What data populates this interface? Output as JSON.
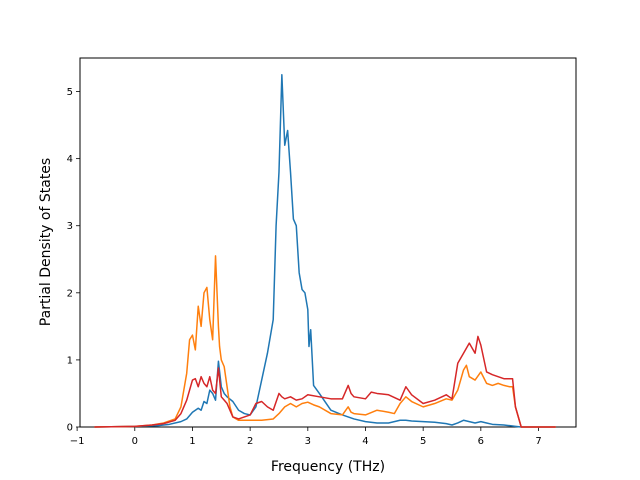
{
  "chart_data": {
    "type": "line",
    "title": "",
    "xlabel": "Frequency (THz)",
    "ylabel": "Partial Density of States",
    "xlim": [
      -0.95,
      7.65
    ],
    "ylim": [
      0,
      5.5
    ],
    "xticks": [
      -1,
      0,
      1,
      2,
      3,
      4,
      5,
      6,
      7
    ],
    "yticks": [
      0,
      1,
      2,
      3,
      4,
      5
    ],
    "grid": false,
    "legend": "none",
    "series": [
      {
        "color": "#1f77b4",
        "x": [
          -0.7,
          0.0,
          0.4,
          0.6,
          0.8,
          0.9,
          1.0,
          1.1,
          1.15,
          1.2,
          1.25,
          1.3,
          1.35,
          1.4,
          1.45,
          1.5,
          1.55,
          1.6,
          1.7,
          1.8,
          1.9,
          2.0,
          2.1,
          2.2,
          2.3,
          2.4,
          2.45,
          2.5,
          2.55,
          2.6,
          2.65,
          2.7,
          2.75,
          2.8,
          2.85,
          2.9,
          2.95,
          3.0,
          3.02,
          3.05,
          3.1,
          3.2,
          3.4,
          3.6,
          3.8,
          4.0,
          4.2,
          4.4,
          4.6,
          4.7,
          4.8,
          5.0,
          5.2,
          5.4,
          5.5,
          5.6,
          5.7,
          5.8,
          5.9,
          6.0,
          6.1,
          6.2,
          6.4,
          6.5,
          6.6,
          6.7,
          7.3
        ],
        "y": [
          0,
          0.01,
          0.02,
          0.04,
          0.08,
          0.12,
          0.22,
          0.28,
          0.25,
          0.38,
          0.35,
          0.55,
          0.5,
          0.4,
          0.98,
          0.6,
          0.5,
          0.45,
          0.38,
          0.25,
          0.2,
          0.18,
          0.3,
          0.7,
          1.1,
          1.6,
          3.0,
          3.8,
          5.25,
          4.2,
          4.42,
          3.8,
          3.1,
          3.0,
          2.3,
          2.05,
          2.0,
          1.75,
          1.2,
          1.45,
          0.62,
          0.5,
          0.25,
          0.18,
          0.12,
          0.08,
          0.06,
          0.06,
          0.1,
          0.1,
          0.09,
          0.08,
          0.07,
          0.05,
          0.03,
          0.06,
          0.1,
          0.08,
          0.06,
          0.08,
          0.06,
          0.04,
          0.03,
          0.02,
          0.01,
          0,
          0
        ]
      },
      {
        "color": "#ff7f0e",
        "x": [
          -0.7,
          0.0,
          0.3,
          0.5,
          0.7,
          0.8,
          0.9,
          0.95,
          1.0,
          1.05,
          1.1,
          1.15,
          1.2,
          1.25,
          1.3,
          1.35,
          1.4,
          1.45,
          1.47,
          1.5,
          1.55,
          1.6,
          1.65,
          1.7,
          1.8,
          2.0,
          2.2,
          2.4,
          2.5,
          2.6,
          2.7,
          2.8,
          2.9,
          3.0,
          3.1,
          3.2,
          3.4,
          3.6,
          3.7,
          3.75,
          3.8,
          4.0,
          4.2,
          4.4,
          4.5,
          4.6,
          4.7,
          4.8,
          5.0,
          5.2,
          5.4,
          5.5,
          5.6,
          5.7,
          5.75,
          5.8,
          5.9,
          6.0,
          6.1,
          6.2,
          6.3,
          6.4,
          6.5,
          6.55,
          6.6,
          6.7,
          7.3
        ],
        "y": [
          0,
          0.01,
          0.03,
          0.06,
          0.12,
          0.3,
          0.8,
          1.3,
          1.37,
          1.15,
          1.8,
          1.5,
          2.0,
          2.08,
          1.6,
          1.3,
          2.55,
          1.5,
          1.2,
          1.0,
          0.9,
          0.6,
          0.3,
          0.15,
          0.1,
          0.1,
          0.1,
          0.12,
          0.2,
          0.3,
          0.35,
          0.3,
          0.35,
          0.37,
          0.33,
          0.3,
          0.2,
          0.18,
          0.3,
          0.22,
          0.2,
          0.18,
          0.25,
          0.22,
          0.2,
          0.35,
          0.45,
          0.38,
          0.3,
          0.35,
          0.42,
          0.4,
          0.55,
          0.85,
          0.92,
          0.75,
          0.7,
          0.82,
          0.65,
          0.62,
          0.65,
          0.62,
          0.6,
          0.6,
          0.3,
          0,
          0
        ]
      },
      {
        "color": "#d62728",
        "x": [
          -0.7,
          0.0,
          0.3,
          0.5,
          0.7,
          0.8,
          0.9,
          1.0,
          1.05,
          1.1,
          1.15,
          1.2,
          1.25,
          1.3,
          1.35,
          1.4,
          1.45,
          1.5,
          1.55,
          1.6,
          1.7,
          1.8,
          2.0,
          2.1,
          2.2,
          2.3,
          2.4,
          2.5,
          2.55,
          2.6,
          2.7,
          2.8,
          2.9,
          3.0,
          3.2,
          3.4,
          3.6,
          3.7,
          3.75,
          3.8,
          4.0,
          4.1,
          4.2,
          4.4,
          4.6,
          4.7,
          4.8,
          5.0,
          5.2,
          5.4,
          5.5,
          5.6,
          5.7,
          5.8,
          5.9,
          5.95,
          6.0,
          6.1,
          6.2,
          6.3,
          6.4,
          6.5,
          6.55,
          6.6,
          6.7,
          7.3
        ],
        "y": [
          0,
          0.01,
          0.03,
          0.05,
          0.1,
          0.2,
          0.4,
          0.7,
          0.72,
          0.6,
          0.75,
          0.65,
          0.6,
          0.75,
          0.55,
          0.5,
          0.88,
          0.45,
          0.4,
          0.35,
          0.15,
          0.12,
          0.18,
          0.35,
          0.38,
          0.3,
          0.25,
          0.5,
          0.45,
          0.42,
          0.45,
          0.4,
          0.42,
          0.48,
          0.45,
          0.42,
          0.42,
          0.62,
          0.5,
          0.45,
          0.42,
          0.52,
          0.5,
          0.48,
          0.4,
          0.6,
          0.48,
          0.35,
          0.4,
          0.48,
          0.42,
          0.95,
          1.1,
          1.25,
          1.1,
          1.35,
          1.22,
          0.82,
          0.78,
          0.75,
          0.72,
          0.72,
          0.72,
          0.3,
          0,
          0
        ]
      }
    ]
  }
}
